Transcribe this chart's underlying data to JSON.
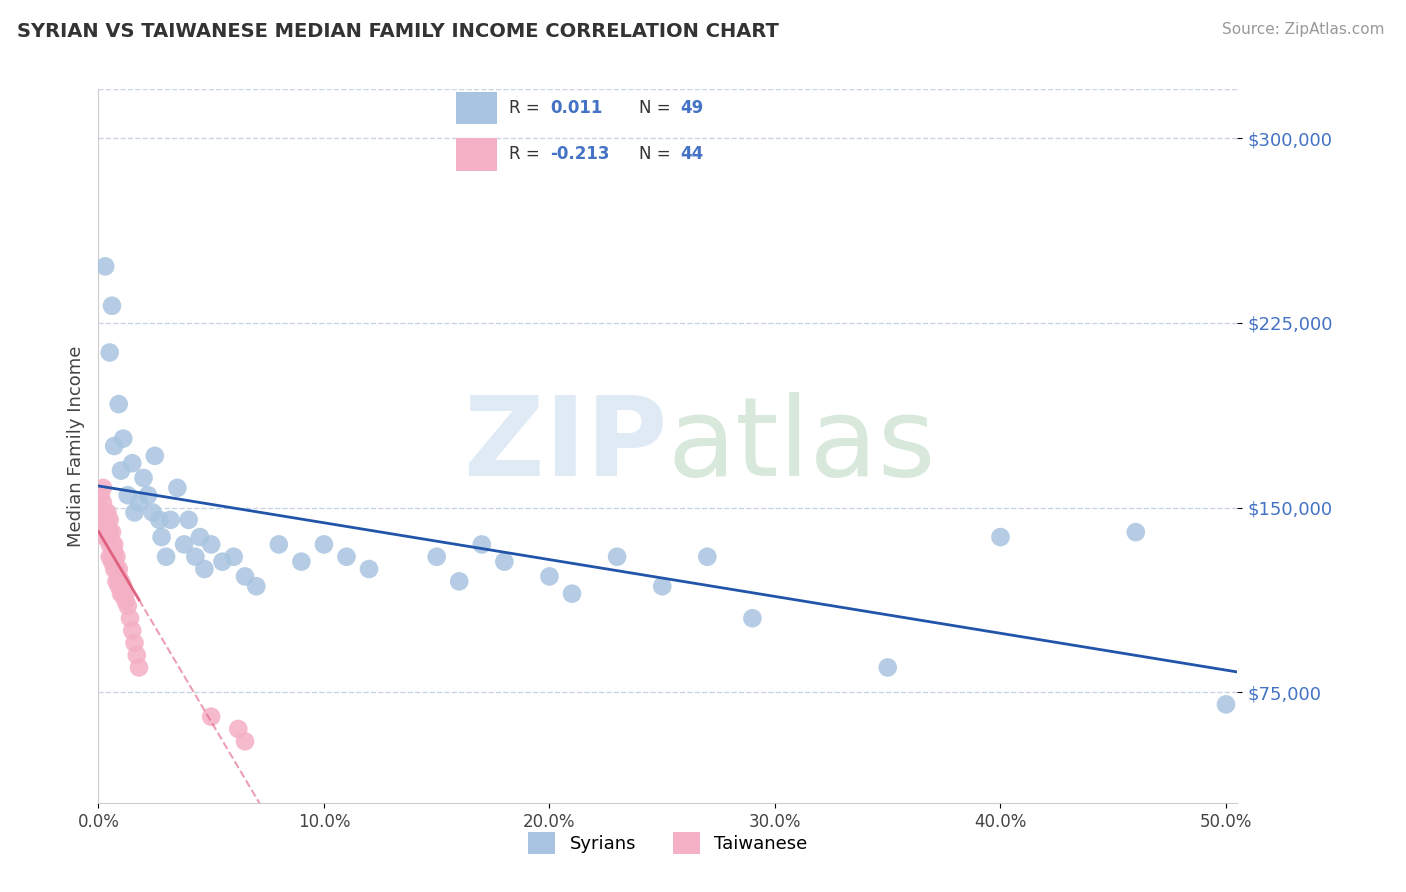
{
  "title": "SYRIAN VS TAIWANESE MEDIAN FAMILY INCOME CORRELATION CHART",
  "source": "Source: ZipAtlas.com",
  "ylabel": "Median Family Income",
  "xlim": [
    0.0,
    0.505
  ],
  "ylim": [
    30000,
    320000
  ],
  "yticks": [
    75000,
    150000,
    225000,
    300000
  ],
  "ytick_labels": [
    "$75,000",
    "$150,000",
    "$225,000",
    "$300,000"
  ],
  "xticks": [
    0.0,
    0.1,
    0.2,
    0.3,
    0.4,
    0.5
  ],
  "xtick_labels": [
    "0.0%",
    "10.0%",
    "20.0%",
    "30.0%",
    "40.0%",
    "50.0%"
  ],
  "syrians_x": [
    0.003,
    0.005,
    0.006,
    0.007,
    0.009,
    0.01,
    0.011,
    0.013,
    0.015,
    0.016,
    0.018,
    0.02,
    0.022,
    0.024,
    0.025,
    0.027,
    0.028,
    0.03,
    0.032,
    0.035,
    0.038,
    0.04,
    0.043,
    0.045,
    0.047,
    0.05,
    0.055,
    0.06,
    0.065,
    0.07,
    0.08,
    0.09,
    0.1,
    0.11,
    0.12,
    0.15,
    0.16,
    0.17,
    0.18,
    0.2,
    0.21,
    0.23,
    0.25,
    0.27,
    0.29,
    0.35,
    0.4,
    0.46,
    0.5
  ],
  "syrians_y": [
    248000,
    213000,
    232000,
    175000,
    192000,
    165000,
    178000,
    155000,
    168000,
    148000,
    152000,
    162000,
    155000,
    148000,
    171000,
    145000,
    138000,
    130000,
    145000,
    158000,
    135000,
    145000,
    130000,
    138000,
    125000,
    135000,
    128000,
    130000,
    122000,
    118000,
    135000,
    128000,
    135000,
    130000,
    125000,
    130000,
    120000,
    135000,
    128000,
    122000,
    115000,
    130000,
    118000,
    130000,
    105000,
    85000,
    138000,
    140000,
    70000
  ],
  "taiwanese_x": [
    0.001,
    0.001,
    0.002,
    0.002,
    0.002,
    0.003,
    0.003,
    0.003,
    0.004,
    0.004,
    0.004,
    0.005,
    0.005,
    0.005,
    0.005,
    0.006,
    0.006,
    0.006,
    0.006,
    0.007,
    0.007,
    0.007,
    0.007,
    0.008,
    0.008,
    0.008,
    0.009,
    0.009,
    0.009,
    0.01,
    0.01,
    0.011,
    0.011,
    0.012,
    0.012,
    0.013,
    0.014,
    0.015,
    0.016,
    0.017,
    0.018,
    0.05,
    0.062,
    0.065
  ],
  "taiwanese_y": [
    155000,
    148000,
    152000,
    145000,
    158000,
    148000,
    142000,
    138000,
    148000,
    145000,
    138000,
    145000,
    140000,
    135000,
    130000,
    140000,
    135000,
    130000,
    128000,
    135000,
    132000,
    128000,
    125000,
    130000,
    125000,
    120000,
    125000,
    122000,
    118000,
    120000,
    115000,
    118000,
    115000,
    115000,
    112000,
    110000,
    105000,
    100000,
    95000,
    90000,
    85000,
    65000,
    60000,
    55000
  ],
  "syrian_color": "#a8c4e0",
  "taiwanese_color": "#f4b0c4",
  "syrian_line_color": "#2255aa",
  "taiwanese_line_color": "#e06080",
  "legend_r_syrian": "R =  0.011",
  "legend_n_syrian": "N = 49",
  "legend_r_taiwanese": "R = -0.213",
  "legend_n_taiwanese": "N = 44",
  "background_color": "#ffffff",
  "grid_color": "#c8d4e4"
}
